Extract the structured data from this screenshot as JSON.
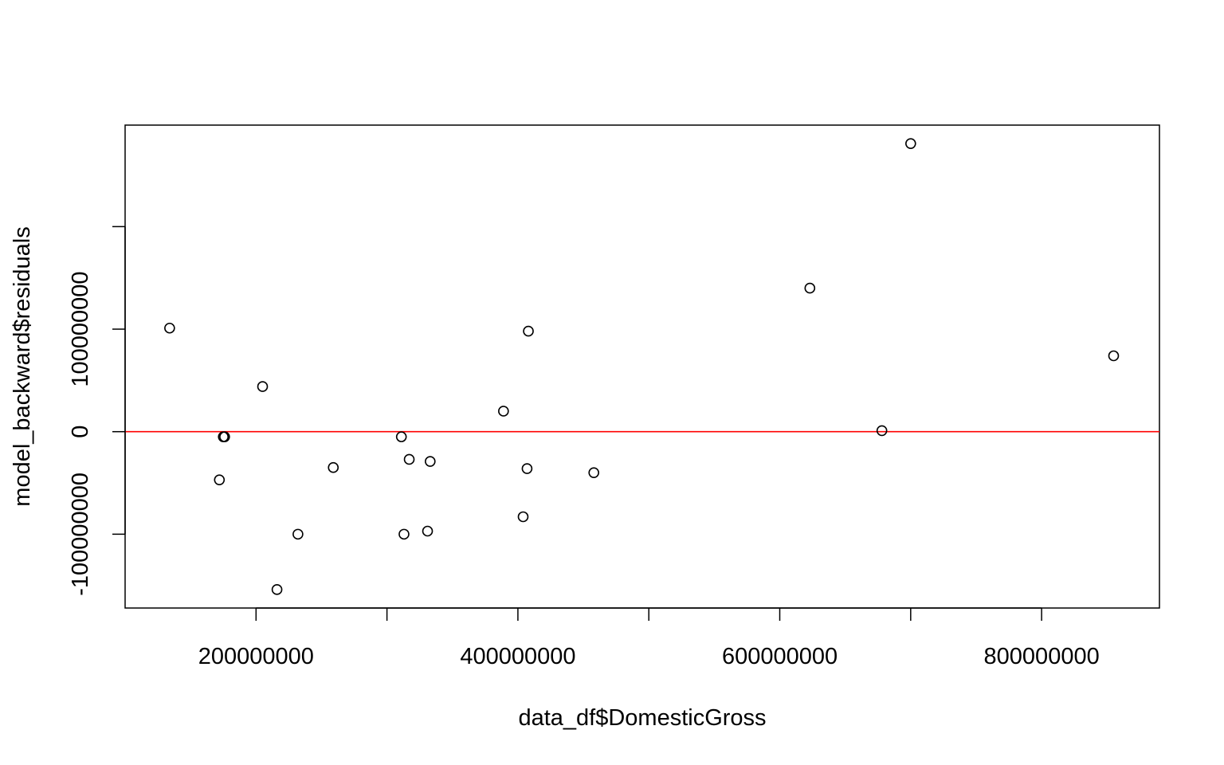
{
  "chart_data": {
    "type": "scatter",
    "title": "",
    "xlabel": "data_df$DomesticGross",
    "ylabel": "model_backward$residuals",
    "xlim": [
      100000000,
      890000000
    ],
    "ylim": [
      -172000000,
      299000000
    ],
    "x_ticks": [
      {
        "value": 200000000,
        "label": "200000000"
      },
      {
        "value": 300000000,
        "label": ""
      },
      {
        "value": 400000000,
        "label": "400000000"
      },
      {
        "value": 500000000,
        "label": ""
      },
      {
        "value": 600000000,
        "label": "600000000"
      },
      {
        "value": 700000000,
        "label": ""
      },
      {
        "value": 800000000,
        "label": "800000000"
      }
    ],
    "y_ticks": [
      {
        "value": -100000000,
        "label": "-100000000"
      },
      {
        "value": 0,
        "label": "0"
      },
      {
        "value": 100000000,
        "label": "100000000"
      },
      {
        "value": 200000000,
        "label": ""
      }
    ],
    "reference_line": {
      "y": 0,
      "color": "#ff0000"
    },
    "points": [
      {
        "x": 134000000,
        "y": 101000000
      },
      {
        "x": 172000000,
        "y": -47000000
      },
      {
        "x": 175000000,
        "y": -5000000
      },
      {
        "x": 176000000,
        "y": -5000000
      },
      {
        "x": 205000000,
        "y": 44000000
      },
      {
        "x": 216000000,
        "y": -154000000
      },
      {
        "x": 232000000,
        "y": -100000000
      },
      {
        "x": 259000000,
        "y": -35000000
      },
      {
        "x": 311000000,
        "y": -5000000
      },
      {
        "x": 313000000,
        "y": -100000000
      },
      {
        "x": 317000000,
        "y": -27000000
      },
      {
        "x": 331000000,
        "y": -97000000
      },
      {
        "x": 333000000,
        "y": -29000000
      },
      {
        "x": 389000000,
        "y": 20000000
      },
      {
        "x": 404000000,
        "y": -83000000
      },
      {
        "x": 407000000,
        "y": -36000000
      },
      {
        "x": 408000000,
        "y": 98000000
      },
      {
        "x": 458000000,
        "y": -40000000
      },
      {
        "x": 623000000,
        "y": 140000000
      },
      {
        "x": 678000000,
        "y": 1000000
      },
      {
        "x": 700000000,
        "y": 281000000
      },
      {
        "x": 855000000,
        "y": 74000000
      }
    ]
  }
}
